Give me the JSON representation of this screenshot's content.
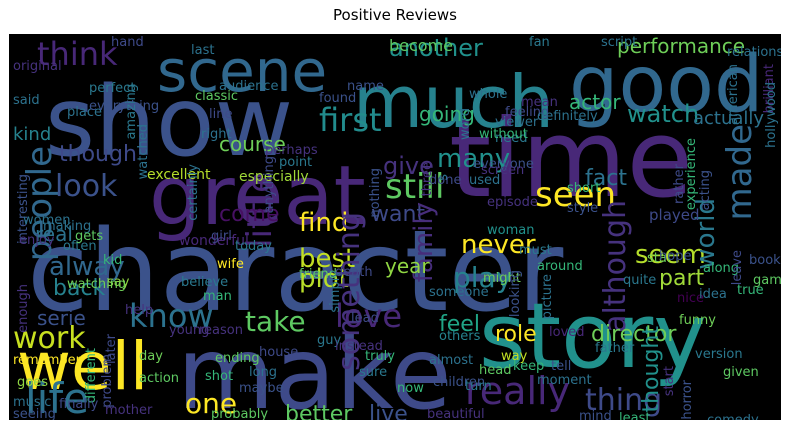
{
  "title": "Positive Reviews",
  "words": [
    {
      "t": "character",
      "c": "#3b528b"
    },
    {
      "t": "story",
      "c": "#21918c"
    },
    {
      "t": "make",
      "c": "#3e4a89"
    },
    {
      "t": "show",
      "c": "#3b528b"
    },
    {
      "t": "time",
      "c": "#482878"
    },
    {
      "t": "good",
      "c": "#31688e"
    },
    {
      "t": "much",
      "c": "#26828e"
    },
    {
      "t": "great",
      "c": "#482878"
    },
    {
      "t": "well",
      "c": "#fde725"
    },
    {
      "t": "scene",
      "c": "#31688e"
    },
    {
      "t": "think",
      "c": "#482878"
    },
    {
      "t": "another",
      "c": "#21918c"
    },
    {
      "t": "actor",
      "c": "#35b779"
    },
    {
      "t": "performance",
      "c": "#6ece58"
    },
    {
      "t": "become",
      "c": "#5ec962"
    },
    {
      "t": "first",
      "c": "#228c8d"
    },
    {
      "t": "watch",
      "c": "#21918c"
    },
    {
      "t": "actually",
      "c": "#2c728e"
    },
    {
      "t": "going",
      "c": "#35b779"
    },
    {
      "t": "people",
      "c": "#31688e"
    },
    {
      "t": "though",
      "c": "#3e4a89"
    },
    {
      "t": "look",
      "c": "#3b528b"
    },
    {
      "t": "course",
      "c": "#6ece58"
    },
    {
      "t": "many",
      "c": "#21918c"
    },
    {
      "t": "made",
      "c": "#31688e"
    },
    {
      "t": "give",
      "c": "#46327e"
    },
    {
      "t": "still",
      "c": "#5ec962"
    },
    {
      "t": "seen",
      "c": "#fde725"
    },
    {
      "t": "fact",
      "c": "#2c728e"
    },
    {
      "t": "find",
      "c": "#fde725"
    },
    {
      "t": "want",
      "c": "#3e4a89"
    },
    {
      "t": "little",
      "c": "#482878"
    },
    {
      "t": "come",
      "c": "#471063"
    },
    {
      "t": "real",
      "c": "#2c728e"
    },
    {
      "t": "alway",
      "c": "#31688e"
    },
    {
      "t": "back",
      "c": "#26828e"
    },
    {
      "t": "best",
      "c": "#c2df23"
    },
    {
      "t": "plot",
      "c": "#b8de29"
    },
    {
      "t": "play",
      "c": "#26828e"
    },
    {
      "t": "seem",
      "c": "#b5de2b"
    },
    {
      "t": "part",
      "c": "#a0da39"
    },
    {
      "t": "world",
      "c": "#2a788e"
    },
    {
      "t": "never",
      "c": "#fde725"
    },
    {
      "t": "although",
      "c": "#46327e"
    },
    {
      "t": "know",
      "c": "#2c728e"
    },
    {
      "t": "love",
      "c": "#482878"
    },
    {
      "t": "take",
      "c": "#5ec962"
    },
    {
      "t": "serie",
      "c": "#3b528b"
    },
    {
      "t": "work",
      "c": "#c8e020"
    },
    {
      "t": "role",
      "c": "#fde725"
    },
    {
      "t": "director",
      "c": "#6ece58"
    },
    {
      "t": "feel",
      "c": "#20a486"
    },
    {
      "t": "something",
      "c": "#46327e"
    },
    {
      "t": "really",
      "c": "#482878"
    },
    {
      "t": "thing",
      "c": "#3e4a89"
    },
    {
      "t": "life",
      "c": "#2c728e"
    },
    {
      "t": "one",
      "c": "#fde725"
    },
    {
      "t": "better",
      "c": "#5ec962"
    },
    {
      "t": "live",
      "c": "#3b528b"
    },
    {
      "t": "thought",
      "c": "#21918c"
    },
    {
      "t": "family",
      "c": "#472d7b"
    },
    {
      "t": "year",
      "c": "#90d743"
    },
    {
      "t": "kind",
      "c": "#26828e"
    },
    {
      "t": "excellent",
      "c": "#b5de2b"
    },
    {
      "t": "especially",
      "c": "#a0da39"
    },
    {
      "t": "classic",
      "c": "#5ec962"
    },
    {
      "t": "point",
      "c": "#2a788e"
    },
    {
      "t": "everyone",
      "c": "#3b528b"
    },
    {
      "t": "screen",
      "c": "#46327e"
    },
    {
      "t": "short",
      "c": "#35b779"
    },
    {
      "t": "style",
      "c": "#3b528b"
    },
    {
      "t": "played",
      "c": "#3e4a89"
    },
    {
      "t": "episode",
      "c": "#46327e"
    },
    {
      "t": "woman",
      "c": "#21918c"
    },
    {
      "t": "must",
      "c": "#2a788e"
    },
    {
      "t": "around",
      "c": "#35b779"
    },
    {
      "t": "star",
      "c": "#6ece58"
    },
    {
      "t": "wonderful",
      "c": "#482878"
    },
    {
      "t": "today",
      "c": "#2a788e"
    },
    {
      "t": "girl",
      "c": "#3e4a89"
    },
    {
      "t": "making",
      "c": "#2c728e"
    },
    {
      "t": "wife",
      "c": "#fde725"
    },
    {
      "t": "kid",
      "c": "#35b779"
    },
    {
      "t": "say",
      "c": "#90d743"
    },
    {
      "t": "help",
      "c": "#46327e"
    },
    {
      "t": "friend",
      "c": "#5ec962"
    },
    {
      "t": "believe",
      "c": "#2a788e"
    },
    {
      "t": "man",
      "c": "#35b779"
    },
    {
      "t": "might",
      "c": "#6ece58"
    },
    {
      "t": "looking",
      "c": "#3b528b"
    },
    {
      "t": "picture",
      "c": "#2c728e"
    },
    {
      "t": "quite",
      "c": "#2a788e"
    },
    {
      "t": "nice",
      "c": "#440154"
    },
    {
      "t": "funny",
      "c": "#6ece58"
    },
    {
      "t": "father",
      "c": "#2a788e"
    },
    {
      "t": "others",
      "c": "#26828e"
    },
    {
      "t": "loved",
      "c": "#482878"
    },
    {
      "t": "way",
      "c": "#c2df23"
    },
    {
      "t": "keep",
      "c": "#35b779"
    },
    {
      "t": "tell",
      "c": "#3b528b"
    },
    {
      "t": "almost",
      "c": "#2c728e"
    },
    {
      "t": "children",
      "c": "#3b528b"
    },
    {
      "t": "turn",
      "c": "#2a788e"
    },
    {
      "t": "head",
      "c": "#5ec962"
    },
    {
      "t": "truly",
      "c": "#35b779"
    },
    {
      "t": "sure",
      "c": "#2a788e"
    },
    {
      "t": "moment",
      "c": "#2c728e"
    },
    {
      "t": "beautiful",
      "c": "#46327e"
    },
    {
      "t": "least",
      "c": "#35b779"
    },
    {
      "t": "comedy",
      "c": "#2c728e"
    },
    {
      "t": "mind",
      "c": "#3b528b"
    },
    {
      "t": "probably",
      "c": "#5ec962"
    },
    {
      "t": "action",
      "c": "#5ec962"
    },
    {
      "t": "goes",
      "c": "#90d743"
    },
    {
      "t": "music",
      "c": "#2c728e"
    },
    {
      "t": "seeing",
      "c": "#3b528b"
    },
    {
      "t": "mother",
      "c": "#46327e"
    },
    {
      "t": "remember",
      "c": "#fde725"
    },
    {
      "t": "different",
      "c": "#35b779"
    },
    {
      "t": "day",
      "c": "#6ece58"
    },
    {
      "t": "long",
      "c": "#2c728e"
    },
    {
      "t": "ending",
      "c": "#5ec962"
    },
    {
      "t": "maybe",
      "c": "#3b528b"
    },
    {
      "t": "shot",
      "c": "#35b779"
    },
    {
      "t": "house",
      "c": "#3e4a89"
    },
    {
      "t": "now",
      "c": "#35b779"
    },
    {
      "t": "horror",
      "c": "#3b528b"
    },
    {
      "t": "given",
      "c": "#5ec962"
    },
    {
      "t": "version",
      "c": "#2a788e"
    },
    {
      "t": "start",
      "c": "#46327e"
    },
    {
      "t": "hope",
      "c": "#3b528b"
    },
    {
      "t": "true",
      "c": "#35b779"
    },
    {
      "t": "idea",
      "c": "#2c728e"
    },
    {
      "t": "along",
      "c": "#35b779"
    },
    {
      "t": "book",
      "c": "#3b528b"
    },
    {
      "t": "game",
      "c": "#5ec962"
    },
    {
      "t": "leave",
      "c": "#3e4a89"
    },
    {
      "t": "lead",
      "c": "#3e4a89"
    },
    {
      "t": "simply",
      "c": "#2c728e"
    },
    {
      "t": "guy",
      "c": "#2a788e"
    },
    {
      "t": "instead",
      "c": "#46327e"
    },
    {
      "t": "death",
      "c": "#3e4a89"
    },
    {
      "t": "someone",
      "c": "#2c728e"
    },
    {
      "t": "fan",
      "c": "#2a788e"
    },
    {
      "t": "script",
      "c": "#2c728e"
    },
    {
      "t": "hand",
      "c": "#3e4a89"
    },
    {
      "t": "last",
      "c": "#2c728e"
    },
    {
      "t": "name",
      "c": "#3b528b"
    },
    {
      "t": "original",
      "c": "#46327e"
    },
    {
      "t": "said",
      "c": "#2c728e"
    },
    {
      "t": "perfect",
      "c": "#2a788e"
    },
    {
      "t": "place",
      "c": "#2c728e"
    },
    {
      "t": "everything",
      "c": "#3b528b"
    },
    {
      "t": "amazing",
      "c": "#2a788e"
    },
    {
      "t": "watched",
      "c": "#2c728e"
    },
    {
      "t": "interesting",
      "c": "#3b528b"
    },
    {
      "t": "women",
      "c": "#2c728e"
    },
    {
      "t": "often",
      "c": "#2a788e"
    },
    {
      "t": "watching",
      "c": "#6ece58"
    },
    {
      "t": "enough",
      "c": "#46327e"
    },
    {
      "t": "gets",
      "c": "#5ec962"
    },
    {
      "t": "line",
      "c": "#3e4a89"
    },
    {
      "t": "audience",
      "c": "#2c728e"
    },
    {
      "t": "found",
      "c": "#3b528b"
    },
    {
      "t": "right",
      "c": "#2c728e"
    },
    {
      "t": "perhaps",
      "c": "#46327e"
    },
    {
      "t": "anything",
      "c": "#3e4a89"
    },
    {
      "t": "certainly",
      "c": "#2c728e"
    },
    {
      "t": "nothing",
      "c": "#3b528b"
    },
    {
      "t": "three",
      "c": "#46327e"
    },
    {
      "t": "done",
      "c": "#3e4a89"
    },
    {
      "t": "used",
      "c": "#2c728e"
    },
    {
      "t": "need",
      "c": "#2a788e"
    },
    {
      "t": "viewer",
      "c": "#2c728e"
    },
    {
      "t": "without",
      "c": "#35b779"
    },
    {
      "t": "whole",
      "c": "#2c728e"
    },
    {
      "t": "mean",
      "c": "#46327e"
    },
    {
      "t": "feeling",
      "c": "#3e4a89"
    },
    {
      "t": "word",
      "c": "#2c728e"
    },
    {
      "t": "definitely",
      "c": "#2c728e"
    },
    {
      "t": "american",
      "c": "#2c728e"
    },
    {
      "t": "acting",
      "c": "#3b528b"
    },
    {
      "t": "rather",
      "c": "#3e4a89"
    },
    {
      "t": "experience",
      "c": "#35b779"
    },
    {
      "t": "brilliant",
      "c": "#482878"
    },
    {
      "t": "hollywood",
      "c": "#2c728e"
    },
    {
      "t": "relationship",
      "c": "#2c728e"
    },
    {
      "t": "s",
      "c": "#2c728e"
    },
    {
      "t": "reason",
      "c": "#46327e"
    },
    {
      "t": "problem",
      "c": "#3e4a89"
    },
    {
      "t": "later",
      "c": "#3e4a89"
    },
    {
      "t": "young",
      "c": "#46327e"
    },
    {
      "t": "finally",
      "c": "#3e4a89"
    },
    {
      "t": "enjoy",
      "c": "#46327e"
    },
    {
      "t": "face",
      "c": "#3e4a89"
    },
    {
      "t": "fun",
      "c": "#46327e"
    }
  ]
}
